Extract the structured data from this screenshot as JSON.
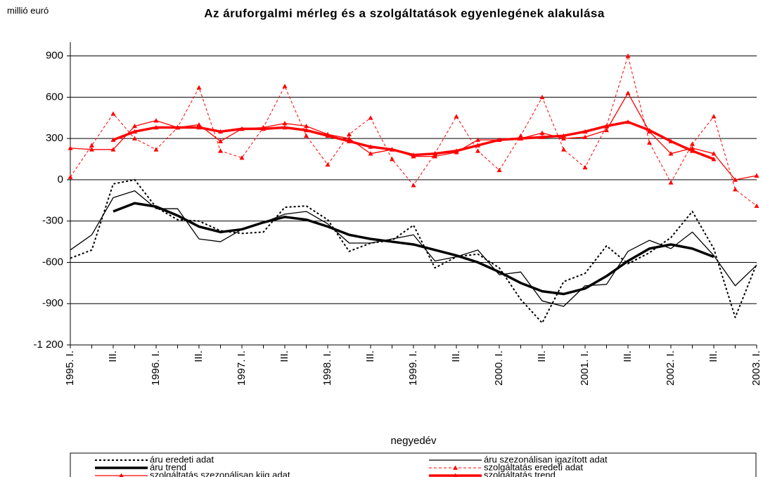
{
  "chart_data": {
    "type": "line",
    "title": "Az áruforgalmi mérleg és a szolgáltatások egyenlegének alakulása",
    "y_unit_label": "millió euró",
    "x_label": "negyedév",
    "categories": [
      "1995. I.",
      null,
      "III.",
      null,
      "1996. I.",
      null,
      "III.",
      null,
      "1997. I.",
      null,
      "III.",
      null,
      "1998. I.",
      null,
      "III.",
      null,
      "1999. I.",
      null,
      "III.",
      null,
      "2000. I.",
      null,
      "III.",
      null,
      "2001. I.",
      null,
      "III.",
      null,
      "2002. I.",
      null,
      "III.",
      null,
      "2003. I."
    ],
    "ylim": [
      -1200,
      1000
    ],
    "yticks": [
      {
        "value": -1200,
        "label": "-1 200"
      },
      -900,
      -600,
      -300,
      0,
      300,
      600,
      900
    ],
    "grid": true,
    "legend": "bottom",
    "series": [
      {
        "name": "áru eredeti adat",
        "color": "#000000",
        "line_style": "dotted",
        "values": [
          -570,
          -510,
          -30,
          0,
          -200,
          -290,
          -300,
          -370,
          -390,
          -380,
          -200,
          -190,
          -290,
          -520,
          -460,
          -440,
          -330,
          -640,
          -560,
          -540,
          -640,
          -870,
          -1040,
          -740,
          -680,
          -480,
          -610,
          -530,
          -420,
          -230,
          -500,
          -1000,
          -610
        ]
      },
      {
        "name": "áru szezonálisan igazított adat",
        "color": "#000000",
        "line_style": "solid",
        "values": [
          -510,
          -400,
          -130,
          -80,
          -210,
          -210,
          -430,
          -450,
          -360,
          -310,
          -250,
          -230,
          -320,
          -460,
          -460,
          -430,
          -400,
          -590,
          -560,
          -510,
          -690,
          -670,
          -880,
          -920,
          -770,
          -760,
          -520,
          -440,
          -500,
          -380,
          -550,
          -770,
          -620
        ]
      },
      {
        "name": "áru trend",
        "color": "#000000",
        "line_style": "thick",
        "values": [
          null,
          null,
          -230,
          -170,
          -195,
          -260,
          -340,
          -380,
          -360,
          -310,
          -270,
          -290,
          -340,
          -400,
          -430,
          -450,
          -470,
          -510,
          -550,
          -600,
          -670,
          -750,
          -810,
          -830,
          -790,
          -700,
          -590,
          -500,
          -470,
          -500,
          -560,
          null,
          null
        ]
      },
      {
        "name": "szolgáltatás eredeti adat",
        "color": "#ff0000",
        "line_style": "dashed",
        "marker": "triangle",
        "values": [
          20,
          250,
          480,
          300,
          220,
          380,
          670,
          210,
          160,
          380,
          680,
          320,
          110,
          330,
          450,
          150,
          -40,
          190,
          460,
          210,
          70,
          320,
          600,
          220,
          90,
          390,
          900,
          270,
          -20,
          260,
          460,
          -70,
          -190
        ]
      },
      {
        "name": "szolgáltatás szezonálisan kiig adat",
        "color": "#ff0000",
        "line_style": "solid",
        "marker": "triangle",
        "values": [
          230,
          220,
          220,
          390,
          430,
          380,
          400,
          280,
          370,
          380,
          410,
          390,
          330,
          300,
          190,
          220,
          170,
          170,
          200,
          290,
          290,
          300,
          340,
          300,
          310,
          360,
          630,
          350,
          190,
          230,
          190,
          0,
          30
        ]
      },
      {
        "name": "szolgáltatás trend",
        "color": "#ff0000",
        "line_style": "thick",
        "marker": "triangle",
        "values": [
          null,
          null,
          290,
          350,
          380,
          380,
          380,
          350,
          370,
          370,
          380,
          360,
          320,
          280,
          240,
          220,
          180,
          190,
          210,
          250,
          290,
          300,
          310,
          320,
          350,
          390,
          420,
          360,
          280,
          210,
          150,
          null,
          null
        ]
      }
    ]
  }
}
